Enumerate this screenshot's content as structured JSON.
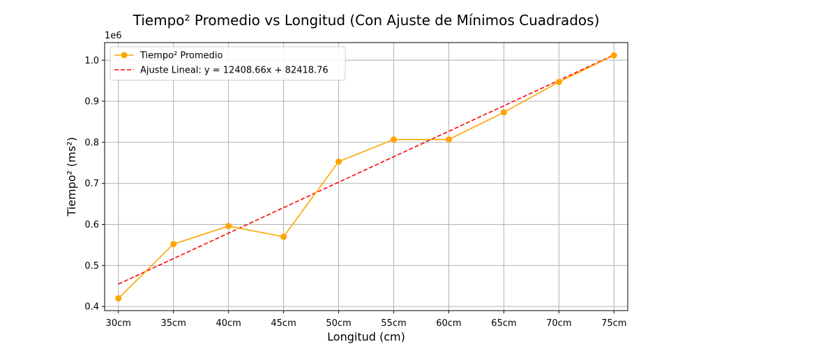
{
  "chart_data": {
    "type": "line",
    "title": "Tiempo² Promedio vs Longitud (Con Ajuste de Mínimos Cuadrados)",
    "xlabel": "Longitud (cm)",
    "ylabel": "Tiempo² (ms²)",
    "y_multiplier_label": "1e6",
    "categories": [
      "30cm",
      "35cm",
      "40cm",
      "45cm",
      "50cm",
      "55cm",
      "60cm",
      "65cm",
      "70cm",
      "75cm"
    ],
    "x": [
      30,
      35,
      40,
      45,
      50,
      55,
      60,
      65,
      70,
      75
    ],
    "y_ticks": [
      0.4,
      0.5,
      0.6,
      0.7,
      0.8,
      0.9,
      1.0
    ],
    "y_tick_labels": [
      "0.4",
      "0.5",
      "0.6",
      "0.7",
      "0.8",
      "0.9",
      "1.0"
    ],
    "ylim": [
      0.39,
      1.043
    ],
    "grid": true,
    "legend_position": "top-left",
    "series": [
      {
        "name": "Tiempo² Promedio",
        "style": "line-marker",
        "color": "#ffa500",
        "values": [
          0.42,
          0.552,
          0.596,
          0.57,
          0.753,
          0.807,
          0.807,
          0.873,
          0.947,
          1.012
        ]
      },
      {
        "name": "Ajuste Lineal: y = 12408.66x + 82418.76",
        "style": "dashed",
        "color": "#ff0000",
        "slope": 12408.66,
        "intercept": 82418.76,
        "values": [
          0.454679,
          0.516722,
          0.578765,
          0.640808,
          0.702851,
          0.764895,
          0.826938,
          0.888981,
          0.951024,
          1.013068
        ]
      }
    ]
  }
}
